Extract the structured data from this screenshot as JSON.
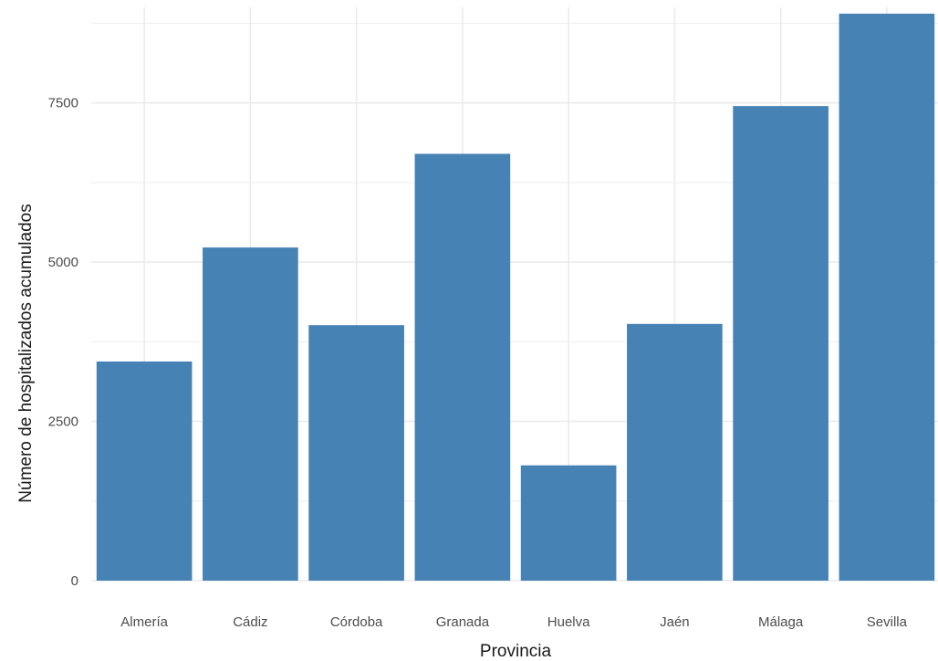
{
  "chart_data": {
    "type": "bar",
    "title": "",
    "xlabel": "Provincia",
    "ylabel": "Número de hospitalizados acumulados",
    "categories": [
      "Almería",
      "Cádiz",
      "Córdoba",
      "Granada",
      "Huelva",
      "Jaén",
      "Málaga",
      "Sevilla"
    ],
    "values": [
      3440,
      5230,
      4010,
      6700,
      1810,
      4030,
      7450,
      8900
    ],
    "ylim": [
      0,
      9000
    ],
    "yticks": [
      0,
      2500,
      5000,
      7500
    ],
    "ytick_labels": [
      "0",
      "2500",
      "5000",
      "7500"
    ],
    "bar_color": "#4682b4",
    "grid": true,
    "grid_color": "#ebebeb",
    "legend": "none"
  }
}
